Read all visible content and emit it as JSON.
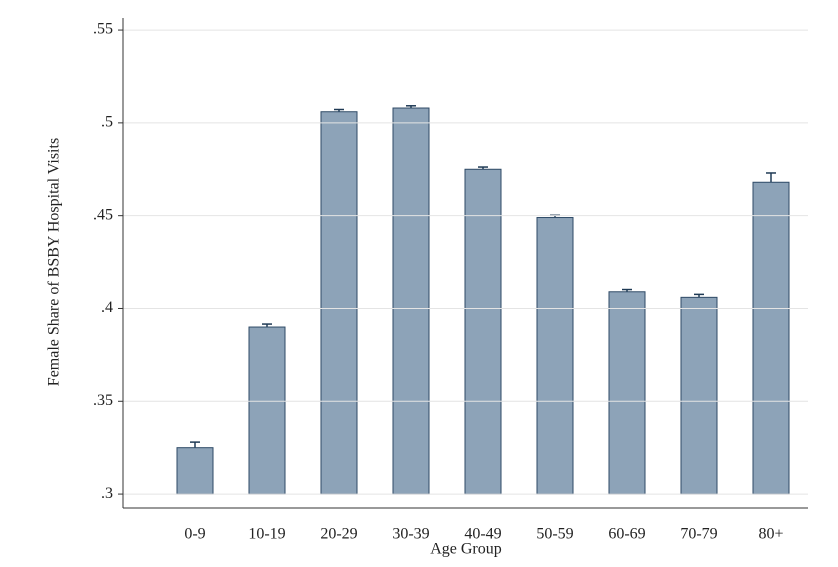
{
  "chart_data": {
    "type": "bar",
    "x_label": "Age Group",
    "y_label": "Female Share of BSBY Hospital Visits",
    "categories": [
      "0-9",
      "10-19",
      "20-29",
      "30-39",
      "40-49",
      "50-59",
      "60-69",
      "70-79",
      "80+"
    ],
    "values": [
      0.325,
      0.39,
      0.506,
      0.508,
      0.475,
      0.449,
      0.409,
      0.406,
      0.468
    ],
    "errors": [
      0.003,
      0.0016,
      0.0012,
      0.0012,
      0.0012,
      0.0012,
      0.0012,
      0.0016,
      0.005
    ],
    "color": "#8da3b8",
    "ylim": [
      0.2925,
      0.5565
    ],
    "yticks": [
      {
        "value": 0.3,
        "label": ".3"
      },
      {
        "value": 0.35,
        "label": ".35"
      },
      {
        "value": 0.4,
        "label": ".4"
      },
      {
        "value": 0.45,
        "label": ".45"
      },
      {
        "value": 0.5,
        "label": ".5"
      },
      {
        "value": 0.55,
        "label": ".55"
      }
    ],
    "grid": true
  }
}
